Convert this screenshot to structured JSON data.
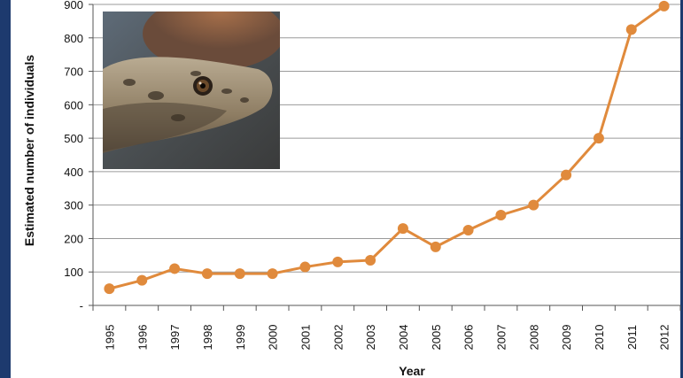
{
  "chart_data": {
    "type": "line",
    "x": [
      "1995",
      "1996",
      "1997",
      "1998",
      "1999",
      "2000",
      "2001",
      "2002",
      "2003",
      "2004",
      "2005",
      "2006",
      "2007",
      "2008",
      "2009",
      "2010",
      "2011",
      "2012"
    ],
    "series": [
      {
        "values": [
          50,
          75,
          110,
          95,
          95,
          95,
          115,
          130,
          135,
          230,
          175,
          225,
          270,
          300,
          390,
          500,
          825,
          895
        ]
      }
    ],
    "xlabel": "Year",
    "ylabel": "Estimated number of individuals",
    "ylim": [
      0,
      900
    ],
    "yticks": [
      {
        "value": 0,
        "label": "-"
      },
      {
        "value": 100,
        "label": "100"
      },
      {
        "value": 200,
        "label": "200"
      },
      {
        "value": 300,
        "label": "300"
      },
      {
        "value": 400,
        "label": "400"
      },
      {
        "value": 500,
        "label": "500"
      },
      {
        "value": 600,
        "label": "600"
      },
      {
        "value": 700,
        "label": "700"
      },
      {
        "value": 800,
        "label": "800"
      },
      {
        "value": 900,
        "label": "900"
      }
    ],
    "grid": true,
    "line_color": "#e08a3c",
    "grid_color": "#9a9a9a",
    "inset_image": "snake-head-photo"
  }
}
